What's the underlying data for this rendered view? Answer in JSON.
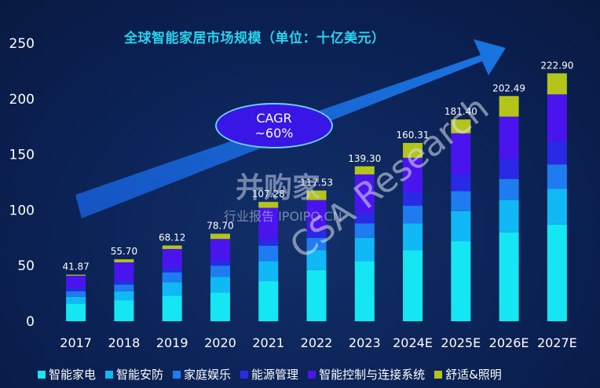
{
  "chart_data": {
    "type": "bar",
    "stacked": true,
    "title": "全球智能家居市场规模（单位：十亿美元）",
    "categories": [
      "2017",
      "2018",
      "2019",
      "2020",
      "2021",
      "2022",
      "2023",
      "2024E",
      "2025E",
      "2026E",
      "2027E"
    ],
    "totals_labels": [
      "41.87",
      "55.70",
      "68.12",
      "78.70",
      "107.28",
      "117.53",
      "139.30",
      "160.31",
      "181.40",
      "202.49",
      "222.90"
    ],
    "totals": [
      41.87,
      55.7,
      68.12,
      78.7,
      107.28,
      117.53,
      139.3,
      160.31,
      181.4,
      202.49,
      222.9
    ],
    "series": [
      {
        "name": "智能家电",
        "color": "#14e6f4",
        "values": [
          16,
          19,
          23,
          26,
          36,
          46,
          54,
          64,
          72,
          80,
          87
        ]
      },
      {
        "name": "智能安防",
        "color": "#10b8f5",
        "values": [
          6,
          8,
          12,
          14,
          18,
          18,
          21,
          24,
          27,
          29,
          32
        ]
      },
      {
        "name": "家庭娱乐",
        "color": "#1e7cf0",
        "values": [
          5,
          6,
          9,
          10,
          14,
          11,
          13,
          16,
          18,
          19,
          22
        ]
      },
      {
        "name": "能源管理",
        "color": "#2a2ae6",
        "values": [
          3,
          4,
          4,
          5,
          6,
          6,
          10,
          12,
          15,
          18,
          21
        ]
      },
      {
        "name": "智能控制与连接系统",
        "color": "#4a14ee",
        "values": [
          11,
          16,
          17,
          19,
          28,
          28,
          34,
          31,
          37,
          38,
          42
        ]
      },
      {
        "name": "舒适&照明",
        "color": "#b4c41a",
        "values": [
          0.87,
          2.7,
          3.12,
          4.7,
          5.28,
          8.53,
          7.3,
          13.31,
          12.4,
          18.49,
          18.9
        ]
      }
    ],
    "y_ticks": [
      "0",
      "50",
      "100",
      "150",
      "200",
      "250"
    ],
    "ylim": [
      0,
      250
    ],
    "annotation": {
      "line1": "CAGR",
      "line2": "~60%"
    },
    "legend_position": "bottom",
    "grid": false
  },
  "watermarks": {
    "brand": "并购家",
    "brand_sub": "行业报告 IPOIPO.CN",
    "research": "CSA Research"
  }
}
